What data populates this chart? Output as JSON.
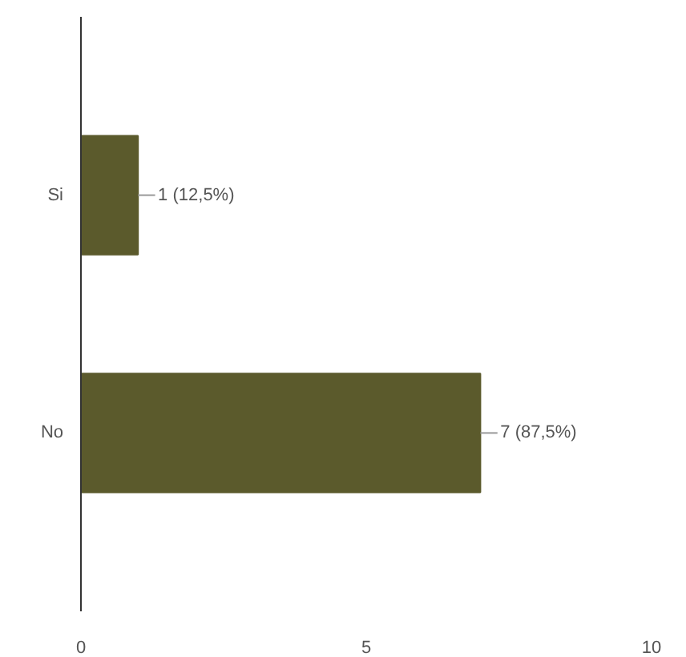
{
  "chart_data": {
    "type": "bar",
    "orientation": "horizontal",
    "categories": [
      "Si",
      "No"
    ],
    "values": [
      1,
      7
    ],
    "value_labels": [
      "1 (12,5%)",
      "7 (87,5%)"
    ],
    "color": "#5b5a2c",
    "xlim": [
      0,
      10
    ],
    "xticks": [
      0,
      5,
      10
    ],
    "grid": false
  }
}
